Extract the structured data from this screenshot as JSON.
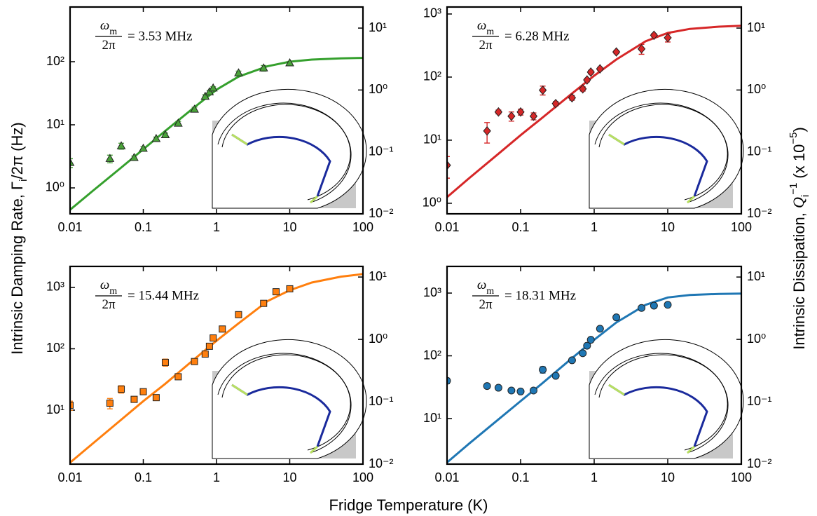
{
  "labels": {
    "xlabel": "Fridge Temperature (K)",
    "ylabel": [
      "Intrinsic Damping Rate, Γ",
      "i",
      "/2π (Hz)"
    ],
    "y2label": [
      "Intrinsic Dissipation, ",
      "Q",
      "i",
      "−1",
      " (x 10",
      "−5",
      ")"
    ]
  },
  "chart_data": [
    {
      "type": "scatter",
      "xscale": "log",
      "yscale": "log",
      "color": "#4aa33a",
      "marker": "triangle",
      "annotation": {
        "numerator": "ω",
        "subscript": "m",
        "denominator": "2π",
        "text": "= 3.53 MHz"
      },
      "x": [
        0.01,
        0.035,
        0.05,
        0.075,
        0.1,
        0.15,
        0.2,
        0.3,
        0.5,
        0.7,
        0.8,
        0.9,
        2,
        4.4,
        10
      ],
      "values": [
        2.5,
        2.9,
        4.6,
        3.0,
        4.2,
        6.0,
        6.9,
        10.5,
        17.5,
        28,
        33,
        38,
        66,
        79,
        95
      ],
      "errors": [
        0.4,
        0.4,
        0.5,
        0.2,
        0.3,
        0.4,
        0.5,
        0.8,
        1.5,
        2,
        2,
        2,
        5,
        8,
        6
      ],
      "fit": {
        "color": "#35a02d",
        "x": [
          0.01,
          0.02,
          0.05,
          0.1,
          0.2,
          0.5,
          1,
          2,
          5,
          10,
          20,
          50,
          100
        ],
        "values": [
          0.45,
          0.88,
          2.1,
          4.1,
          8,
          19,
          36,
          58,
          85,
          100,
          108,
          113,
          115
        ]
      },
      "xlim": [
        0.01,
        100
      ],
      "xticks": [
        0.01,
        0.1,
        1,
        10,
        100
      ],
      "ylim": [
        0.388,
        736
      ],
      "yticks": [
        {
          "value": 1,
          "label": "10⁰"
        },
        {
          "value": 10,
          "label": "10¹"
        },
        {
          "value": 100,
          "label": "10²"
        }
      ],
      "y2lim": [
        0.01,
        21.9
      ],
      "y2ticks": [
        {
          "value": 0.01,
          "label": "10⁻²"
        },
        {
          "value": 0.1,
          "label": "10⁻¹"
        },
        {
          "value": 1,
          "label": "10⁰"
        },
        {
          "value": 10,
          "label": "10¹"
        }
      ]
    },
    {
      "type": "scatter",
      "xscale": "log",
      "yscale": "log",
      "color": "#d62728",
      "marker": "diamond",
      "annotation": {
        "numerator": "ω",
        "subscript": "m",
        "denominator": "2π",
        "text": "= 6.28 MHz"
      },
      "x": [
        0.01,
        0.035,
        0.05,
        0.075,
        0.1,
        0.15,
        0.2,
        0.3,
        0.5,
        0.7,
        0.8,
        0.9,
        1.2,
        2,
        4.4,
        6.5,
        10
      ],
      "values": [
        4,
        14,
        28,
        24,
        28,
        24,
        62,
        38,
        47,
        65,
        90,
        120,
        135,
        250,
        280,
        460,
        420
      ],
      "errors": [
        1.5,
        5,
        2,
        4,
        3,
        3,
        10,
        3,
        4,
        5,
        6,
        8,
        8,
        15,
        50,
        30,
        60
      ],
      "fit": {
        "color": "#d62728",
        "x": [
          0.01,
          0.02,
          0.05,
          0.1,
          0.2,
          0.5,
          1,
          2,
          5,
          10,
          20,
          50,
          100
        ],
        "values": [
          1.25,
          2.5,
          6.1,
          12,
          23,
          55,
          105,
          190,
          370,
          500,
          580,
          630,
          650
        ]
      },
      "xlim": [
        0.01,
        100
      ],
      "xticks": [
        0.01,
        0.1,
        1,
        10,
        100
      ],
      "ylim": [
        0.68,
        1290
      ],
      "yticks": [
        {
          "value": 1,
          "label": "10⁰"
        },
        {
          "value": 10,
          "label": "10¹"
        },
        {
          "value": 100,
          "label": "10²"
        },
        {
          "value": 1000,
          "label": "10³"
        }
      ],
      "y2lim": [
        0.01,
        21.9
      ],
      "y2ticks": [
        {
          "value": 0.01,
          "label": "10⁻²"
        },
        {
          "value": 0.1,
          "label": "10⁻¹"
        },
        {
          "value": 1,
          "label": "10⁰"
        },
        {
          "value": 10,
          "label": "10¹"
        }
      ]
    },
    {
      "type": "scatter",
      "xscale": "log",
      "yscale": "log",
      "color": "#ff7f0e",
      "marker": "square",
      "annotation": {
        "numerator": "ω",
        "subscript": "m",
        "denominator": "2π",
        "text": "= 15.44 MHz"
      },
      "x": [
        0.01,
        0.035,
        0.05,
        0.075,
        0.1,
        0.15,
        0.2,
        0.3,
        0.5,
        0.7,
        0.8,
        0.9,
        1.2,
        2,
        4.4,
        6.5,
        10
      ],
      "values": [
        12,
        13,
        22,
        15,
        20,
        16,
        60,
        35,
        62,
        82,
        110,
        150,
        210,
        360,
        550,
        850,
        950
      ],
      "errors": [
        2,
        2.5,
        3,
        1,
        1,
        1,
        8,
        2,
        4,
        5,
        6,
        8,
        10,
        20,
        30,
        40,
        40
      ],
      "fit": {
        "color": "#ff7f0e",
        "x": [
          0.01,
          0.02,
          0.05,
          0.1,
          0.2,
          0.5,
          1,
          2,
          5,
          10,
          20,
          50,
          100
        ],
        "values": [
          1.4,
          2.8,
          7,
          14,
          27,
          68,
          135,
          260,
          600,
          900,
          1200,
          1500,
          1650
        ]
      },
      "xlim": [
        0.01,
        100
      ],
      "xticks": [
        0.01,
        0.1,
        1,
        10,
        100
      ],
      "ylim": [
        1.32,
        2200
      ],
      "yticks": [
        {
          "value": 10,
          "label": "10¹"
        },
        {
          "value": 100,
          "label": "10²"
        },
        {
          "value": 1000,
          "label": "10³"
        }
      ],
      "y2lim": [
        0.01,
        14.8
      ],
      "y2ticks": [
        {
          "value": 0.01,
          "label": "10⁻²"
        },
        {
          "value": 0.1,
          "label": "10⁻¹"
        },
        {
          "value": 1,
          "label": "10⁰"
        },
        {
          "value": 10,
          "label": "10¹"
        }
      ]
    },
    {
      "type": "scatter",
      "xscale": "log",
      "yscale": "log",
      "color": "#1f77b4",
      "marker": "circle",
      "annotation": {
        "numerator": "ω",
        "subscript": "m",
        "denominator": "2π",
        "text": "= 18.31 MHz"
      },
      "x": [
        0.01,
        0.035,
        0.05,
        0.075,
        0.1,
        0.15,
        0.2,
        0.3,
        0.5,
        0.7,
        0.8,
        0.9,
        1.2,
        2,
        4.4,
        6.5,
        10
      ],
      "values": [
        40,
        33,
        31,
        28,
        27,
        28,
        60,
        48,
        85,
        110,
        145,
        180,
        270,
        410,
        580,
        630,
        650
      ],
      "errors": [
        4,
        2,
        2,
        2,
        2,
        2,
        7,
        3,
        5,
        6,
        8,
        10,
        12,
        15,
        20,
        20,
        30
      ],
      "fit": {
        "color": "#1f77b4",
        "x": [
          0.01,
          0.02,
          0.05,
          0.1,
          0.2,
          0.5,
          1,
          2,
          5,
          10,
          20,
          50,
          100
        ],
        "values": [
          2,
          4,
          9.7,
          19,
          37,
          92,
          180,
          340,
          650,
          850,
          930,
          970,
          980
        ]
      },
      "xlim": [
        0.01,
        100
      ],
      "xticks": [
        0.01,
        0.1,
        1,
        10,
        100
      ],
      "ylim": [
        1.88,
        2660
      ],
      "yticks": [
        {
          "value": 10,
          "label": "10¹"
        },
        {
          "value": 100,
          "label": "10²"
        },
        {
          "value": 1000,
          "label": "10³"
        }
      ],
      "y2lim": [
        0.01,
        14.8
      ],
      "y2ticks": [
        {
          "value": 0.01,
          "label": "10⁻²"
        },
        {
          "value": 0.1,
          "label": "10⁻¹"
        },
        {
          "value": 1,
          "label": "10⁰"
        },
        {
          "value": 10,
          "label": "10¹"
        }
      ]
    }
  ]
}
